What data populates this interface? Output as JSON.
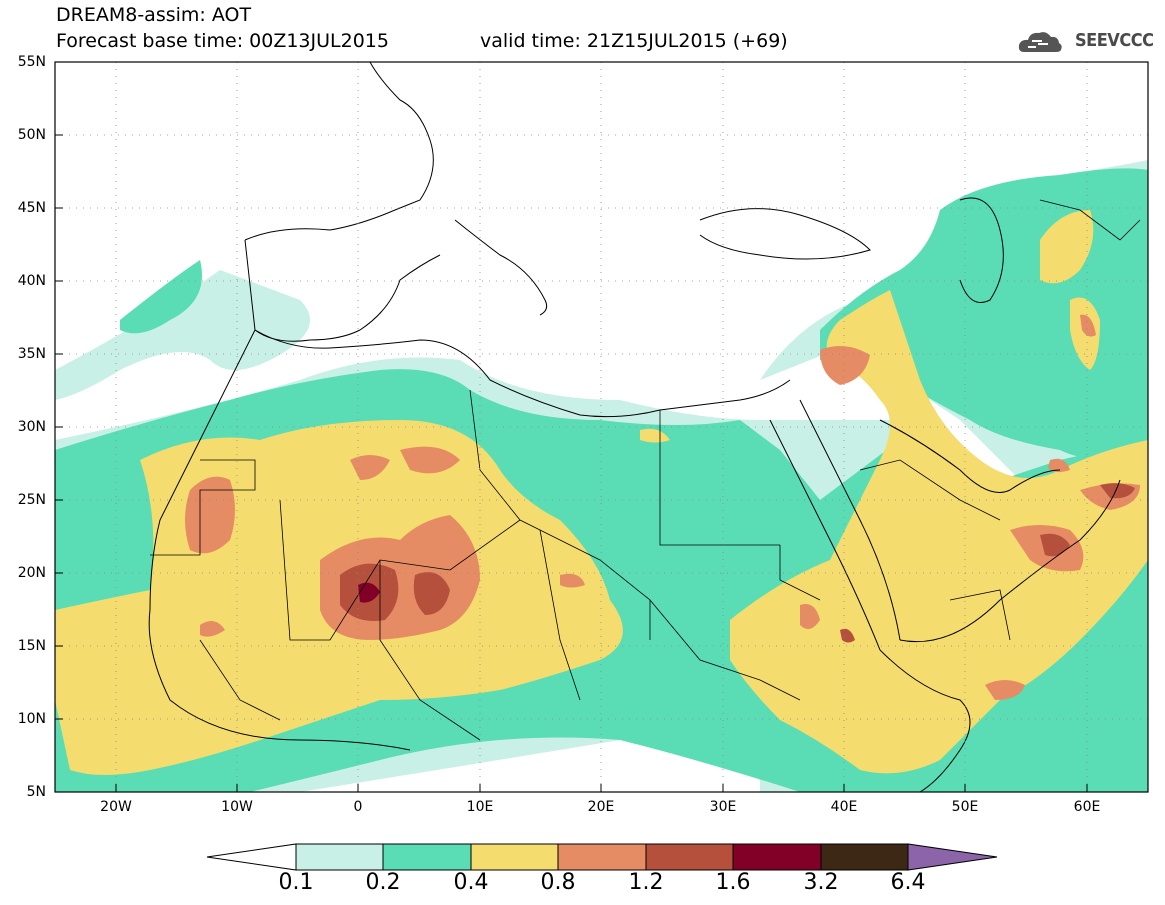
{
  "header": {
    "title_line1": "DREAM8-assim: AOT",
    "title_line2": "Forecast base time: 00Z13JUL2015",
    "valid_time": "valid time: 21Z15JUL2015 (+69)",
    "logo_text": "SEEVCCC"
  },
  "map": {
    "lat_labels": [
      "55N",
      "50N",
      "45N",
      "40N",
      "35N",
      "30N",
      "25N",
      "20N",
      "15N",
      "10N",
      "5N"
    ],
    "lon_labels": [
      "20W",
      "10W",
      "0",
      "10E",
      "20E",
      "30E",
      "40E",
      "50E",
      "60E"
    ]
  },
  "colorbar": {
    "colors": [
      "#ffffff",
      "#c8f0e6",
      "#5adcb4",
      "#f5dc6e",
      "#e68c64",
      "#b4503c",
      "#820028",
      "#3c2814",
      "#8c64aa"
    ],
    "labels": [
      "0.1",
      "0.2",
      "0.4",
      "0.8",
      "1.2",
      "1.6",
      "3.2",
      "6.4"
    ]
  }
}
